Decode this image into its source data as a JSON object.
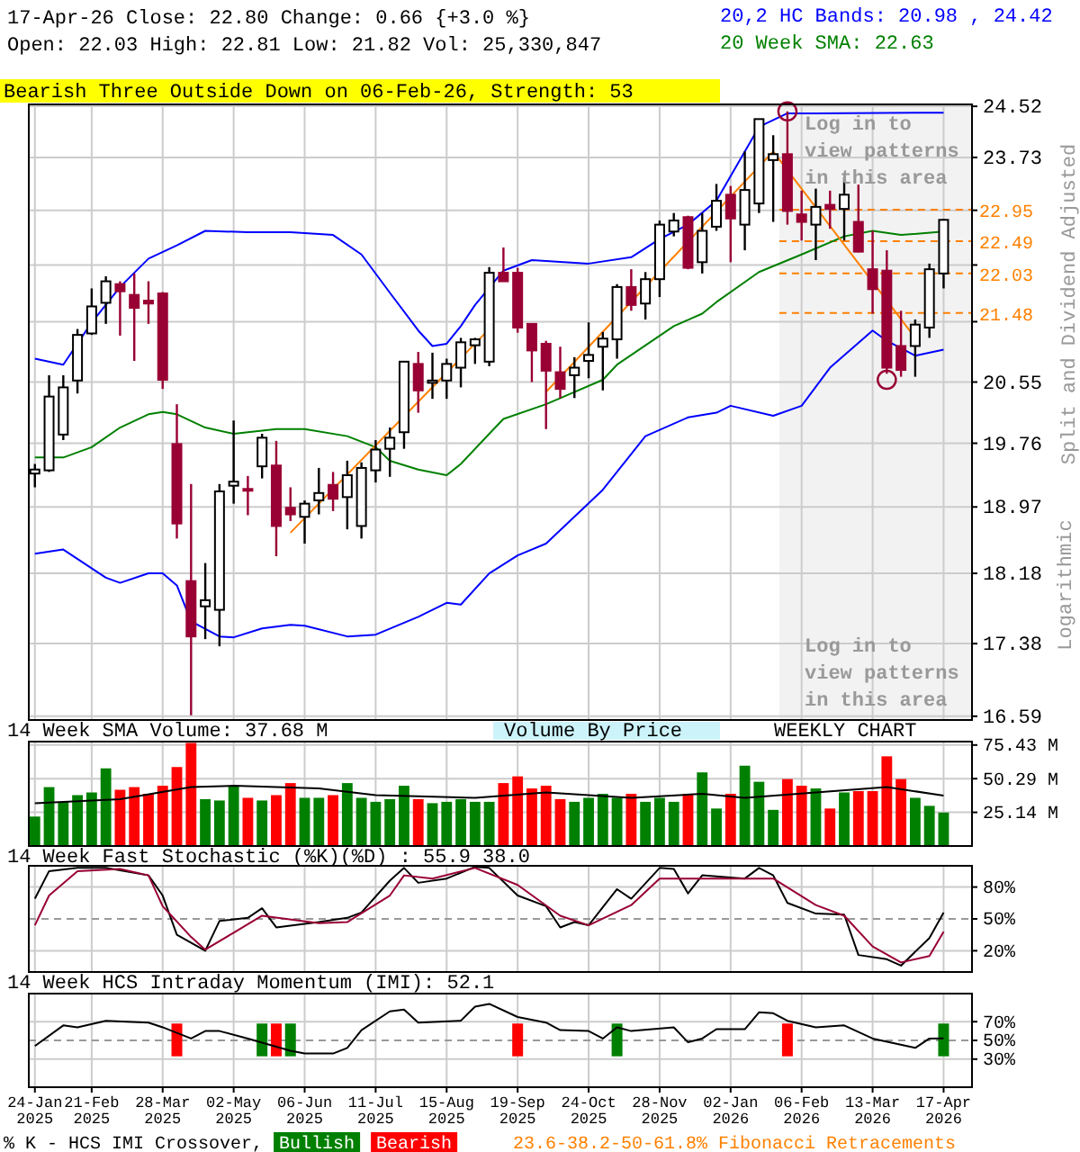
{
  "chart_data": [
    {
      "type": "candlestick",
      "title": "17-Apr-26   Close: 22.80   Change: 0.66 {+3.0 %}",
      "subtitle": "Open: 22.03   High: 22.81   Low: 21.82   Vol: 25,330,847",
      "ylabel": "Split and Dividend Adjusted",
      "annotations": [
        "Bearish Three Outside Down on 06-Feb-26, Strength: 53",
        "Log in to view patterns in this area",
        "Log in to view patterns in this area",
        "Logarithmic"
      ],
      "x": [
        "2025-01-24",
        "2025-01-31",
        "2025-02-07",
        "2025-02-14",
        "2025-02-21",
        "2025-02-28",
        "2025-03-07",
        "2025-03-14",
        "2025-03-21",
        "2025-03-28",
        "2025-04-04",
        "2025-04-11",
        "2025-04-18",
        "2025-04-25",
        "2025-05-02",
        "2025-05-09",
        "2025-05-16",
        "2025-05-23",
        "2025-05-30",
        "2025-06-06",
        "2025-06-13",
        "2025-06-20",
        "2025-06-27",
        "2025-07-04",
        "2025-07-11",
        "2025-07-18",
        "2025-07-25",
        "2025-08-01",
        "2025-08-08",
        "2025-08-15",
        "2025-08-22",
        "2025-08-29",
        "2025-09-05",
        "2025-09-12",
        "2025-09-19",
        "2025-09-26",
        "2025-10-03",
        "2025-10-10",
        "2025-10-17",
        "2025-10-24",
        "2025-10-31",
        "2025-11-07",
        "2025-11-14",
        "2025-11-21",
        "2025-11-28",
        "2025-12-05",
        "2025-12-12",
        "2025-12-19",
        "2025-12-26",
        "2026-01-02",
        "2026-01-09",
        "2026-01-16",
        "2026-01-23",
        "2026-01-30",
        "2026-02-06",
        "2026-02-13",
        "2026-02-20",
        "2026-02-27",
        "2026-03-06",
        "2026-03-13",
        "2026-03-20",
        "2026-03-27",
        "2026-04-03",
        "2026-04-10",
        "2026-04-17"
      ],
      "ohlc": [
        [
          19.38,
          19.5,
          19.21,
          19.43
        ],
        [
          19.42,
          20.64,
          19.4,
          20.36
        ],
        [
          19.87,
          20.64,
          19.8,
          20.48
        ],
        [
          20.57,
          21.26,
          20.4,
          21.18
        ],
        [
          21.2,
          21.82,
          21.18,
          21.57
        ],
        [
          21.62,
          21.99,
          21.33,
          21.92
        ],
        [
          21.88,
          21.92,
          21.17,
          21.78
        ],
        [
          21.73,
          22.03,
          20.83,
          21.55
        ],
        [
          21.65,
          21.92,
          21.33,
          21.61
        ],
        [
          21.75,
          21.77,
          20.46,
          20.58
        ],
        [
          19.75,
          20.26,
          18.59,
          18.77
        ],
        [
          18.09,
          19.25,
          16.6,
          17.46
        ],
        [
          17.8,
          18.3,
          17.43,
          17.87
        ],
        [
          17.76,
          19.25,
          17.35,
          19.16
        ],
        [
          19.23,
          20.05,
          19.01,
          19.28
        ],
        [
          19.19,
          19.35,
          18.87,
          19.18
        ],
        [
          19.47,
          19.88,
          19.32,
          19.83
        ],
        [
          19.48,
          19.79,
          18.38,
          18.74
        ],
        [
          18.96,
          19.21,
          18.8,
          18.88
        ],
        [
          18.85,
          19.05,
          18.53,
          19.01
        ],
        [
          19.05,
          19.45,
          18.88,
          19.14
        ],
        [
          19.24,
          19.4,
          18.92,
          19.07
        ],
        [
          19.09,
          19.54,
          18.7,
          19.36
        ],
        [
          18.74,
          19.52,
          18.59,
          19.45
        ],
        [
          19.42,
          19.8,
          19.27,
          19.68
        ],
        [
          19.69,
          19.96,
          19.34,
          19.83
        ],
        [
          19.9,
          20.82,
          19.69,
          20.82
        ],
        [
          20.79,
          20.95,
          20.15,
          20.44
        ],
        [
          20.54,
          20.94,
          20.33,
          20.57
        ],
        [
          20.57,
          20.86,
          20.33,
          20.79
        ],
        [
          20.74,
          21.14,
          20.48,
          21.08
        ],
        [
          21.04,
          21.14,
          20.79,
          21.12
        ],
        [
          20.82,
          22.12,
          20.76,
          22.04
        ],
        [
          22.04,
          22.4,
          21.92,
          21.92
        ],
        [
          22.04,
          22.11,
          21.21,
          21.28
        ],
        [
          21.33,
          21.33,
          20.55,
          20.97
        ],
        [
          21.06,
          21.1,
          19.94,
          20.7
        ],
        [
          20.68,
          21.02,
          20.34,
          20.46
        ],
        [
          20.64,
          20.88,
          20.34,
          20.74
        ],
        [
          20.83,
          21.35,
          20.6,
          20.91
        ],
        [
          21.02,
          21.22,
          20.44,
          21.13
        ],
        [
          21.12,
          21.88,
          20.86,
          21.84
        ],
        [
          21.84,
          22.09,
          21.51,
          21.59
        ],
        [
          21.61,
          22.05,
          21.39,
          21.95
        ],
        [
          21.95,
          22.79,
          21.7,
          22.73
        ],
        [
          22.63,
          22.9,
          22.56,
          22.79
        ],
        [
          22.84,
          22.86,
          22.09,
          22.11
        ],
        [
          22.19,
          22.9,
          22.03,
          22.64
        ],
        [
          22.7,
          23.33,
          22.64,
          23.08
        ],
        [
          23.17,
          23.3,
          22.19,
          22.82
        ],
        [
          22.73,
          23.82,
          22.36,
          23.24
        ],
        [
          23.04,
          24.32,
          22.9,
          24.32
        ],
        [
          23.69,
          24.07,
          22.77,
          23.78
        ],
        [
          23.78,
          24.44,
          22.73,
          22.93
        ],
        [
          22.88,
          23.23,
          22.5,
          22.77
        ],
        [
          22.73,
          23.26,
          22.22,
          22.99
        ],
        [
          23.02,
          23.23,
          22.67,
          22.96
        ],
        [
          22.96,
          23.43,
          22.5,
          23.17
        ],
        [
          22.77,
          23.32,
          22.33,
          22.34
        ],
        [
          22.09,
          22.64,
          21.47,
          21.81
        ],
        [
          22.07,
          22.36,
          20.66,
          20.74
        ],
        [
          21.03,
          21.51,
          20.62,
          20.71
        ],
        [
          21.03,
          21.39,
          20.62,
          21.32
        ],
        [
          21.28,
          22.17,
          21.14,
          22.09
        ],
        [
          22.03,
          22.81,
          21.82,
          22.8
        ]
      ],
      "series": [
        {
          "type": "line",
          "name": "20,2 HC Bands: 20.98 , 24.42",
          "color": "#0000ff",
          "x": [
            "2025-01-24",
            "2025-02-07",
            "2025-02-21",
            "2025-03-07",
            "2025-03-21",
            "2025-04-04",
            "2025-04-18",
            "2025-05-09",
            "2025-05-30",
            "2025-06-20",
            "2025-07-04",
            "2025-07-18",
            "2025-08-01",
            "2025-08-08",
            "2025-08-15",
            "2025-08-22",
            "2025-08-29",
            "2025-09-12",
            "2025-09-26",
            "2025-10-24",
            "2025-11-14",
            "2025-11-28",
            "2025-12-12",
            "2025-12-26",
            "2026-01-16",
            "2026-01-30",
            "2026-02-13",
            "2026-04-17"
          ],
          "values": [
            20.86,
            20.78,
            21.35,
            21.84,
            22.24,
            22.43,
            22.64,
            22.62,
            22.62,
            22.58,
            22.3,
            21.76,
            21.24,
            21.03,
            21.06,
            21.3,
            21.59,
            22.07,
            22.22,
            22.17,
            22.26,
            22.52,
            22.73,
            23.08,
            24.2,
            24.41,
            24.41,
            24.42
          ]
        },
        {
          "type": "line",
          "color": "#0000ff",
          "x": [
            "2025-01-24",
            "2025-02-07",
            "2025-02-28",
            "2025-03-07",
            "2025-03-21",
            "2025-03-28",
            "2025-04-04",
            "2025-04-11",
            "2025-04-25",
            "2025-05-02",
            "2025-05-16",
            "2025-05-30",
            "2025-06-06",
            "2025-06-27",
            "2025-07-11",
            "2025-08-01",
            "2025-08-15",
            "2025-08-22",
            "2025-09-05",
            "2025-09-19",
            "2025-10-03",
            "2025-10-31",
            "2025-11-21",
            "2025-12-12",
            "2025-12-26",
            "2026-01-02",
            "2026-01-23",
            "2026-02-06",
            "2026-02-20",
            "2026-03-13",
            "2026-03-20",
            "2026-04-03",
            "2026-04-17"
          ],
          "values": [
            18.41,
            18.46,
            18.13,
            18.07,
            18.18,
            18.18,
            18.04,
            17.63,
            17.46,
            17.45,
            17.55,
            17.59,
            17.58,
            17.46,
            17.48,
            17.68,
            17.84,
            17.82,
            18.18,
            18.39,
            18.53,
            19.18,
            19.85,
            20.09,
            20.15,
            20.24,
            20.11,
            20.24,
            20.74,
            21.24,
            21.1,
            20.9,
            20.98
          ]
        },
        {
          "type": "line",
          "name": "20 Week SMA: 22.63",
          "color": "#008000",
          "x": [
            "2025-01-24",
            "2025-02-07",
            "2025-02-21",
            "2025-03-07",
            "2025-03-21",
            "2025-03-28",
            "2025-04-04",
            "2025-04-18",
            "2025-05-02",
            "2025-05-23",
            "2025-06-06",
            "2025-06-27",
            "2025-07-11",
            "2025-07-18",
            "2025-08-01",
            "2025-08-15",
            "2025-08-22",
            "2025-09-05",
            "2025-09-12",
            "2025-10-03",
            "2025-10-10",
            "2025-10-31",
            "2025-11-07",
            "2025-12-05",
            "2025-12-19",
            "2025-12-26",
            "2026-01-16",
            "2026-02-06",
            "2026-02-27",
            "2026-03-13",
            "2026-03-27",
            "2026-04-17"
          ],
          "values": [
            19.58,
            19.58,
            19.71,
            19.96,
            20.13,
            20.16,
            20.13,
            19.96,
            19.88,
            19.94,
            19.94,
            19.85,
            19.71,
            19.54,
            19.43,
            19.36,
            19.5,
            19.88,
            20.07,
            20.26,
            20.34,
            20.58,
            20.78,
            21.3,
            21.47,
            21.63,
            22.05,
            22.3,
            22.56,
            22.64,
            22.58,
            22.63
          ]
        },
        {
          "type": "line",
          "color": "#ff8000",
          "x": [
            "2025-05-30",
            "2025-09-05"
          ],
          "values": [
            18.66,
            21.26
          ]
        },
        {
          "type": "line",
          "color": "#ff8000",
          "x": [
            "2025-10-03",
            "2026-01-23"
          ],
          "values": [
            20.42,
            23.82
          ]
        },
        {
          "type": "line",
          "color": "#ff8000",
          "x": [
            "2026-01-23",
            "2026-04-03"
          ],
          "values": [
            23.82,
            21.14
          ]
        },
        {
          "type": "scatter",
          "marker": "circle",
          "color": "#990033",
          "x": [
            "2026-01-30",
            "2026-03-20"
          ],
          "values": [
            24.44,
            20.58
          ]
        }
      ],
      "ref_lines": [
        {
          "axis": "y",
          "value": 22.95,
          "label": "22.95",
          "color": "#ff8000",
          "line_style": "dashed"
        },
        {
          "axis": "y",
          "value": 22.49,
          "label": "22.49",
          "color": "#ff8000",
          "line_style": "dashed"
        },
        {
          "axis": "y",
          "value": 22.03,
          "label": "22.03",
          "color": "#ff8000",
          "line_style": "dashed"
        },
        {
          "axis": "y",
          "value": 21.48,
          "label": "21.48",
          "color": "#ff8000",
          "line_style": "dashed"
        }
      ],
      "bands": [
        {
          "axis": "x",
          "from": "2026-01-26",
          "to": "2026-05-01",
          "color": "#f2f2f2"
        }
      ],
      "xlim": [
        "2025-01-21",
        "2026-05-01"
      ],
      "xticks": [
        {
          "value": "2025-01-24",
          "label": null
        },
        {
          "value": "2025-02-21",
          "label": null
        },
        {
          "value": "2025-03-28",
          "label": null
        },
        {
          "value": "2025-05-02",
          "label": null
        },
        {
          "value": "2025-06-06",
          "label": null
        },
        {
          "value": "2025-07-11",
          "label": null
        },
        {
          "value": "2025-08-15",
          "label": null
        },
        {
          "value": "2025-09-19",
          "label": null
        },
        {
          "value": "2025-10-24",
          "label": null
        },
        {
          "value": "2025-11-28",
          "label": null
        },
        {
          "value": "2026-01-02",
          "label": null
        },
        {
          "value": "2026-02-06",
          "label": null
        },
        {
          "value": "2026-03-13",
          "label": null
        },
        {
          "value": "2026-04-17",
          "label": null
        }
      ],
      "ylim": [
        16.55,
        24.55
      ],
      "yticks": [
        24.52,
        23.73,
        {
          "value": 22.94,
          "label": null
        },
        {
          "value": 22.15,
          "label": null
        },
        {
          "value": 21.36,
          "label": null
        },
        20.55,
        19.76,
        18.97,
        18.18,
        17.38,
        16.59
      ],
      "log": true,
      "grid": true,
      "legend": "top right",
      "tick_labels": "y"
    },
    {
      "type": "bar",
      "title": "14 Week SMA Volume: 37.68 M",
      "annotations": [
        "Volume By Price",
        "WEEKLY CHART"
      ],
      "x": [
        "2025-01-24",
        "2025-01-31",
        "2025-02-07",
        "2025-02-14",
        "2025-02-21",
        "2025-02-28",
        "2025-03-07",
        "2025-03-14",
        "2025-03-21",
        "2025-03-28",
        "2025-04-04",
        "2025-04-11",
        "2025-04-18",
        "2025-04-25",
        "2025-05-02",
        "2025-05-09",
        "2025-05-16",
        "2025-05-23",
        "2025-05-30",
        "2025-06-06",
        "2025-06-13",
        "2025-06-20",
        "2025-06-27",
        "2025-07-04",
        "2025-07-11",
        "2025-07-18",
        "2025-07-25",
        "2025-08-01",
        "2025-08-08",
        "2025-08-15",
        "2025-08-22",
        "2025-08-29",
        "2025-09-05",
        "2025-09-12",
        "2025-09-19",
        "2025-09-26",
        "2025-10-03",
        "2025-10-10",
        "2025-10-17",
        "2025-10-24",
        "2025-10-31",
        "2025-11-07",
        "2025-11-14",
        "2025-11-21",
        "2025-11-28",
        "2025-12-05",
        "2025-12-12",
        "2025-12-19",
        "2025-12-26",
        "2026-01-02",
        "2026-01-09",
        "2026-01-16",
        "2026-01-23",
        "2026-01-30",
        "2026-02-06",
        "2026-02-13",
        "2026-02-20",
        "2026-02-27",
        "2026-03-06",
        "2026-03-13",
        "2026-03-20",
        "2026-03-27",
        "2026-04-03",
        "2026-04-10",
        "2026-04-17"
      ],
      "series": [
        {
          "type": "bar",
          "values": [
            22,
            44,
            33,
            38,
            40,
            58,
            42,
            44,
            39,
            45,
            59,
            77,
            35,
            34,
            45,
            36,
            34,
            38,
            47,
            36,
            36,
            38,
            47,
            36,
            33,
            35,
            45,
            35,
            32,
            33,
            35,
            33,
            33,
            47,
            52,
            43,
            45,
            35,
            33,
            36,
            39,
            36,
            39,
            33,
            36,
            33,
            39,
            55,
            28,
            39,
            60,
            48,
            27,
            50,
            45,
            43,
            28,
            40,
            41,
            41,
            67,
            50,
            36,
            30,
            25
          ],
          "colors": [
            "#008000",
            "#008000",
            "#008000",
            "#008000",
            "#008000",
            "#008000",
            "#ff0000",
            "#ff0000",
            "#ff0000",
            "#ff0000",
            "#ff0000",
            "#ff0000",
            "#008000",
            "#008000",
            "#008000",
            "#ff0000",
            "#008000",
            "#ff0000",
            "#ff0000",
            "#008000",
            "#008000",
            "#ff0000",
            "#008000",
            "#008000",
            "#008000",
            "#008000",
            "#008000",
            "#ff0000",
            "#008000",
            "#008000",
            "#008000",
            "#008000",
            "#008000",
            "#ff0000",
            "#ff0000",
            "#ff0000",
            "#ff0000",
            "#ff0000",
            "#008000",
            "#008000",
            "#008000",
            "#008000",
            "#ff0000",
            "#008000",
            "#008000",
            "#008000",
            "#ff0000",
            "#008000",
            "#008000",
            "#ff0000",
            "#008000",
            "#008000",
            "#008000",
            "#ff0000",
            "#ff0000",
            "#008000",
            "#ff0000",
            "#008000",
            "#ff0000",
            "#ff0000",
            "#ff0000",
            "#ff0000",
            "#008000",
            "#008000",
            "#008000"
          ]
        },
        {
          "type": "line",
          "color": "#000000",
          "x": [
            "2025-01-24",
            "2025-03-07",
            "2025-04-11",
            "2025-05-02",
            "2025-06-13",
            "2025-07-11",
            "2025-08-29",
            "2025-10-03",
            "2025-11-14",
            "2025-12-19",
            "2026-01-09",
            "2026-02-13",
            "2026-03-20",
            "2026-04-17"
          ],
          "values": [
            32,
            35,
            44,
            45,
            43,
            38,
            36,
            40,
            36,
            39,
            36,
            40,
            44,
            37.68
          ]
        }
      ],
      "xlim": [
        "2025-01-21",
        "2026-05-01"
      ],
      "xticks": [
        {
          "value": "2025-01-24",
          "label": null
        },
        {
          "value": "2025-02-21",
          "label": null
        },
        {
          "value": "2025-03-28",
          "label": null
        },
        {
          "value": "2025-05-02",
          "label": null
        },
        {
          "value": "2025-06-06",
          "label": null
        },
        {
          "value": "2025-07-11",
          "label": null
        },
        {
          "value": "2025-08-15",
          "label": null
        },
        {
          "value": "2025-09-19",
          "label": null
        },
        {
          "value": "2025-10-24",
          "label": null
        },
        {
          "value": "2025-11-28",
          "label": null
        },
        {
          "value": "2026-01-02",
          "label": null
        },
        {
          "value": "2026-02-06",
          "label": null
        },
        {
          "value": "2026-03-13",
          "label": null
        },
        {
          "value": "2026-04-17",
          "label": null
        }
      ],
      "ylim": [
        0,
        78
      ],
      "yticks": [
        {
          "value": 25.14,
          "label": "25.14 M"
        },
        {
          "value": 50.29,
          "label": "50.29 M"
        },
        {
          "value": 75.43,
          "label": "75.43 M"
        }
      ],
      "grid": true,
      "tick_labels": "y"
    },
    {
      "type": "line",
      "title": "14 Week Fast Stochastic (%K)(%D) : 55.9 38.0",
      "series": [
        {
          "color": "#000000",
          "x": [
            "2025-01-24",
            "2025-01-31",
            "2025-02-14",
            "2025-02-28",
            "2025-03-21",
            "2025-03-28",
            "2025-04-04",
            "2025-04-18",
            "2025-04-25",
            "2025-05-09",
            "2025-05-16",
            "2025-05-23",
            "2025-06-13",
            "2025-06-27",
            "2025-07-04",
            "2025-07-18",
            "2025-07-25",
            "2025-08-01",
            "2025-08-15",
            "2025-08-29",
            "2025-09-05",
            "2025-09-19",
            "2025-10-03",
            "2025-10-10",
            "2025-10-17",
            "2025-10-24",
            "2025-11-07",
            "2025-11-14",
            "2025-11-28",
            "2025-12-05",
            "2025-12-12",
            "2025-12-19",
            "2026-01-09",
            "2026-01-16",
            "2026-01-23",
            "2026-01-30",
            "2026-02-13",
            "2026-02-27",
            "2026-03-06",
            "2026-03-20",
            "2026-03-27",
            "2026-04-10",
            "2026-04-17"
          ],
          "values": [
            69,
            95,
            98,
            98,
            91,
            72,
            35,
            20,
            48,
            51,
            60,
            42,
            47,
            51,
            56,
            86,
            98,
            84,
            88,
            99,
            98,
            72,
            62,
            42,
            47,
            44,
            78,
            69,
            98,
            97,
            74,
            91,
            88,
            98,
            91,
            65,
            55,
            54,
            16,
            12,
            6,
            32,
            55.9
          ]
        },
        {
          "color": "#990033",
          "x": [
            "2025-01-24",
            "2025-01-31",
            "2025-02-14",
            "2025-03-07",
            "2025-03-21",
            "2025-03-28",
            "2025-04-11",
            "2025-04-18",
            "2025-05-02",
            "2025-05-16",
            "2025-06-13",
            "2025-06-27",
            "2025-07-18",
            "2025-07-25",
            "2025-08-08",
            "2025-08-29",
            "2025-09-19",
            "2025-10-10",
            "2025-10-24",
            "2025-11-14",
            "2025-11-28",
            "2025-12-19",
            "2026-01-23",
            "2026-02-13",
            "2026-02-27",
            "2026-03-13",
            "2026-03-27",
            "2026-04-10",
            "2026-04-17"
          ],
          "values": [
            44,
            72,
            95,
            97,
            91,
            62,
            33,
            21,
            37,
            53,
            46,
            47,
            72,
            91,
            88,
            98,
            82,
            53,
            44,
            63,
            88,
            88,
            88,
            63,
            53,
            24,
            9,
            15,
            38.0
          ]
        }
      ],
      "ref_lines": [
        {
          "axis": "y",
          "value": 50,
          "color": "#999999",
          "line_style": "dashed"
        }
      ],
      "xlim": [
        "2025-01-21",
        "2026-05-01"
      ],
      "xticks": [
        {
          "value": "2025-01-24",
          "label": null
        },
        {
          "value": "2025-02-21",
          "label": null
        },
        {
          "value": "2025-03-28",
          "label": null
        },
        {
          "value": "2025-05-02",
          "label": null
        },
        {
          "value": "2025-06-06",
          "label": null
        },
        {
          "value": "2025-07-11",
          "label": null
        },
        {
          "value": "2025-08-15",
          "label": null
        },
        {
          "value": "2025-09-19",
          "label": null
        },
        {
          "value": "2025-10-24",
          "label": null
        },
        {
          "value": "2025-11-28",
          "label": null
        },
        {
          "value": "2026-01-02",
          "label": null
        },
        {
          "value": "2026-02-06",
          "label": null
        },
        {
          "value": "2026-03-13",
          "label": null
        },
        {
          "value": "2026-04-17",
          "label": null
        }
      ],
      "ylim": [
        0,
        100
      ],
      "yticks": [
        {
          "value": 20,
          "label": "20%"
        },
        {
          "value": 50,
          "label": "50%"
        },
        {
          "value": 80,
          "label": "80%"
        }
      ],
      "grid": true,
      "tick_labels": "y"
    },
    {
      "type": "line",
      "title": "14 Week HCS Intraday Momentum (IMI): 52.1",
      "annotations": [
        "23.6-38.2-50-61.8% Fibonacci Retracements"
      ],
      "legend_title": "% K - HCS IMI Crossover,",
      "series": [
        {
          "type": "bar",
          "name": "Bullish",
          "color": "#008000",
          "x": [
            "2025-05-16",
            "2025-05-30",
            "2025-11-07",
            "2026-04-17"
          ],
          "base": [
            33,
            33,
            33,
            33
          ],
          "values": [
            35,
            35,
            35,
            35
          ]
        },
        {
          "type": "bar",
          "name": "Bearish",
          "color": "#ff0000",
          "x": [
            "2025-04-04",
            "2025-05-23",
            "2025-09-19",
            "2026-01-30"
          ],
          "base": [
            33,
            33,
            33,
            33
          ],
          "values": [
            35,
            35,
            35,
            35
          ]
        },
        {
          "type": "line",
          "color": "#000000",
          "x": [
            "2025-01-24",
            "2025-02-07",
            "2025-02-14",
            "2025-02-28",
            "2025-03-21",
            "2025-03-28",
            "2025-04-11",
            "2025-04-18",
            "2025-04-25",
            "2025-05-09",
            "2025-05-30",
            "2025-06-06",
            "2025-06-20",
            "2025-06-27",
            "2025-07-04",
            "2025-07-18",
            "2025-07-25",
            "2025-08-01",
            "2025-08-22",
            "2025-08-29",
            "2025-09-05",
            "2025-09-19",
            "2025-10-03",
            "2025-10-10",
            "2025-10-24",
            "2025-10-31",
            "2025-11-07",
            "2025-11-14",
            "2025-12-05",
            "2025-12-12",
            "2025-12-19",
            "2025-12-26",
            "2026-01-09",
            "2026-01-16",
            "2026-01-23",
            "2026-01-30",
            "2026-02-13",
            "2026-02-27",
            "2026-03-13",
            "2026-04-03",
            "2026-04-10",
            "2026-04-17"
          ],
          "values": [
            44,
            66,
            64,
            71,
            69,
            64,
            52,
            60,
            60,
            52,
            39,
            36,
            36,
            42,
            61,
            81,
            83,
            69,
            71,
            86,
            89,
            75,
            69,
            61,
            60,
            52,
            64,
            60,
            64,
            48,
            52,
            62,
            62,
            80,
            79,
            71,
            64,
            66,
            52,
            42,
            52,
            52.1
          ]
        }
      ],
      "ref_lines": [
        {
          "axis": "y",
          "value": 50,
          "color": "#999999",
          "line_style": "dashed"
        }
      ],
      "xlim": [
        "2025-01-21",
        "2026-05-01"
      ],
      "xticks": [
        {
          "value": "2025-01-24",
          "label": "24-Jan 2025"
        },
        {
          "value": "2025-02-21",
          "label": "21-Feb 2025"
        },
        {
          "value": "2025-03-28",
          "label": "28-Mar 2025"
        },
        {
          "value": "2025-05-02",
          "label": "02-May 2025"
        },
        {
          "value": "2025-06-06",
          "label": "06-Jun 2025"
        },
        {
          "value": "2025-07-11",
          "label": "11-Jul 2025"
        },
        {
          "value": "2025-08-15",
          "label": "15-Aug 2025"
        },
        {
          "value": "2025-09-19",
          "label": "19-Sep 2025"
        },
        {
          "value": "2025-10-24",
          "label": "24-Oct 2025"
        },
        {
          "value": "2025-11-28",
          "label": "28-Nov 2025"
        },
        {
          "value": "2026-01-02",
          "label": "02-Jan 2026"
        },
        {
          "value": "2026-02-06",
          "label": "06-Feb 2026"
        },
        {
          "value": "2026-03-13",
          "label": "13-Mar 2026"
        },
        {
          "value": "2026-04-17",
          "label": "17-Apr 2026"
        }
      ],
      "ylim": [
        0,
        100
      ],
      "yticks": [
        {
          "value": 30,
          "label": "30%"
        },
        {
          "value": 50,
          "label": "50%"
        },
        {
          "value": 70,
          "label": "70%"
        }
      ],
      "grid": true,
      "legend": "bottom"
    }
  ]
}
